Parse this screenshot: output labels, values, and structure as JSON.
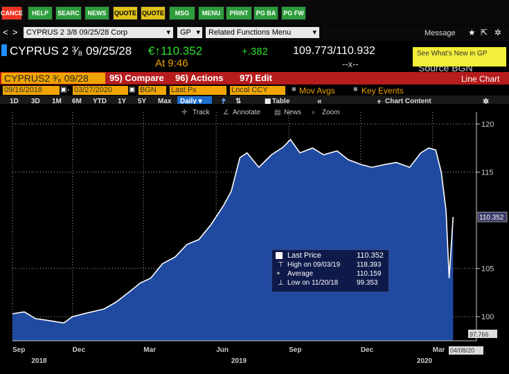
{
  "function_keys": [
    "CANCE",
    "HELP",
    "SEARC",
    "NEWS",
    "QUOTE",
    "QUOTE",
    "MSG",
    "MENU",
    "PRINT",
    "PG BA",
    "PG FW"
  ],
  "nav": {
    "back": "<",
    "forward": ">",
    "security": "CYPRUS 2 3/8 09/25/28 Corp",
    "gp": "GP",
    "related": "Related Functions Menu",
    "message": "Message"
  },
  "quote": {
    "ticker": "CYPRUS 2 ³⁄₈ 09/25/28",
    "price": "€↑110.352",
    "change": "+.382",
    "bid_ask": "109.773/110.932",
    "time": "At 9:46",
    "spread": "--x--",
    "source": "Source BGN",
    "tip": "See What's New in GP"
  },
  "toolbar": {
    "name": "CYPRUS2 ³⁄₈ 09/28",
    "compare": "95) Compare",
    "actions": "96) Actions",
    "edit": "97) Edit",
    "view": "Line Chart"
  },
  "fields": {
    "start": "09/16/2018",
    "end": "03/27/2020",
    "source": "BGN",
    "field": "Last Px",
    "ccy": "Local CCY",
    "mov_avgs": "Mov Avgs",
    "key_events": "Key Events"
  },
  "periods": [
    "1D",
    "3D",
    "1M",
    "6M",
    "YTD",
    "1Y",
    "5Y",
    "Max"
  ],
  "frequency": "Daily",
  "table": "Table",
  "chart_content": "Chart Content",
  "tools": {
    "track": "Track",
    "annotate": "Annotate",
    "news": "News",
    "zoom": "Zoom"
  },
  "legend": {
    "last_label": "Last Price",
    "last_val": "110.352",
    "high_label": "High on 09/03/19",
    "high_val": "118.393",
    "avg_label": "Average",
    "avg_val": "110.159",
    "low_label": "Low on 11/20/18",
    "low_val": "99.353"
  },
  "colors": {
    "fill": "#1f4aa0",
    "line": "#ffffff",
    "accent_red": "#b71d1d",
    "accent_yellow": "#f0a500"
  },
  "chart_data": {
    "type": "area",
    "x_ticks": [
      "Sep",
      "Dec",
      "Mar",
      "Jun",
      "Sep",
      "Dec",
      "Mar"
    ],
    "x_years": [
      "2018",
      "2019",
      "2020"
    ],
    "y_ticks": [
      100,
      105,
      115,
      120
    ],
    "ylim": [
      97.5,
      120.5
    ],
    "last_price_label": "110.352",
    "low_marker": "97.766",
    "date_marker": "04/08/20",
    "x": [
      "2018-09-16",
      "2018-10-01",
      "2018-10-15",
      "2018-11-01",
      "2018-11-20",
      "2018-12-01",
      "2018-12-20",
      "2019-01-10",
      "2019-01-25",
      "2019-02-10",
      "2019-02-25",
      "2019-03-10",
      "2019-03-25",
      "2019-04-10",
      "2019-04-25",
      "2019-05-10",
      "2019-05-25",
      "2019-06-10",
      "2019-06-20",
      "2019-07-01",
      "2019-07-10",
      "2019-07-25",
      "2019-08-10",
      "2019-08-25",
      "2019-09-03",
      "2019-09-15",
      "2019-10-01",
      "2019-10-15",
      "2019-11-01",
      "2019-11-15",
      "2019-12-01",
      "2019-12-15",
      "2020-01-01",
      "2020-01-15",
      "2020-02-01",
      "2020-02-15",
      "2020-02-25",
      "2020-03-05",
      "2020-03-12",
      "2020-03-18",
      "2020-03-22",
      "2020-03-27"
    ],
    "values": [
      100.3,
      100.5,
      99.8,
      99.6,
      99.35,
      100.0,
      100.4,
      100.8,
      101.5,
      102.5,
      103.5,
      104.0,
      105.5,
      106.2,
      107.5,
      108.0,
      109.5,
      111.5,
      113.0,
      116.5,
      117.0,
      115.5,
      116.8,
      117.6,
      118.39,
      117.0,
      117.5,
      116.8,
      117.2,
      116.3,
      115.8,
      115.5,
      115.8,
      116.0,
      115.5,
      117.0,
      117.5,
      117.3,
      115.0,
      111.0,
      104.0,
      110.35
    ]
  }
}
